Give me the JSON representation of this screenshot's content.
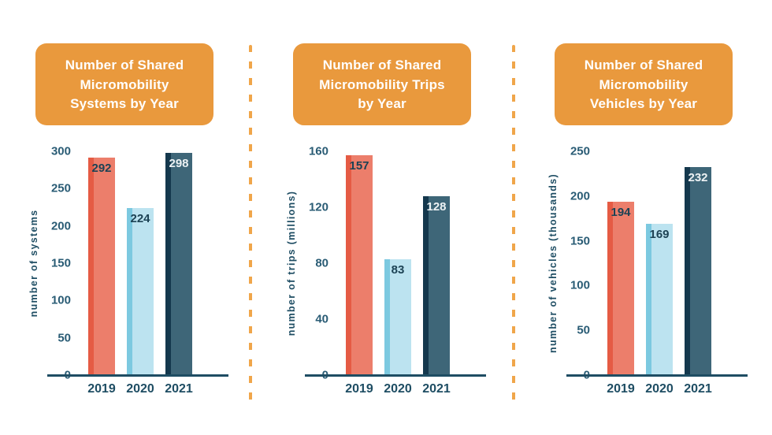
{
  "page": {
    "background": "#ffffff",
    "description_note": "Infographic with three bar charts separated by orange dashed dividers"
  },
  "colors": {
    "banner": "#E9993D",
    "banner_text": "#FFFFFF",
    "divider": "#F0A64A",
    "axis_line": "#1E4D63",
    "tick_text": "#2A5C75",
    "year_text": "#1E4D63",
    "bars": [
      {
        "name": "2019",
        "fill": "#EC7E6B",
        "edge": "#E55B44",
        "label": "#1C4254"
      },
      {
        "name": "2020",
        "fill": "#BCE3F0",
        "edge": "#7CC9E0",
        "label": "#1C4254"
      },
      {
        "name": "2021",
        "fill": "#3E6678",
        "edge": "#14384D",
        "label": "#EDF2F4"
      }
    ]
  },
  "chart_data": [
    {
      "type": "bar",
      "title": "Number of Shared Micromobility Systems by Year",
      "title_lines": [
        "Number of Shared",
        "Micromobility",
        "Systems by Year"
      ],
      "ylabel": "number of systems",
      "xlabel": "",
      "categories": [
        "2019",
        "2020",
        "2021"
      ],
      "values": [
        292,
        224,
        298
      ],
      "yticks": [
        0,
        50,
        100,
        150,
        200,
        250,
        300
      ],
      "ylim": [
        0,
        300
      ],
      "grid": false,
      "legend": "none"
    },
    {
      "type": "bar",
      "title": "Number of Shared Micromobility Trips by Year",
      "title_lines": [
        "Number of Shared",
        "Micromobility Trips",
        "by Year"
      ],
      "ylabel": "number of trips (millions)",
      "xlabel": "",
      "categories": [
        "2019",
        "2020",
        "2021"
      ],
      "values": [
        157,
        83,
        128
      ],
      "yticks": [
        0,
        40,
        80,
        120,
        160
      ],
      "ylim": [
        0,
        160
      ],
      "grid": false,
      "legend": "none"
    },
    {
      "type": "bar",
      "title": "Number of Shared Micromobility Vehicles by Year",
      "title_lines": [
        "Number of Shared",
        "Micromobility",
        "Vehicles by Year"
      ],
      "ylabel": "number of vehicles (thousands)",
      "xlabel": "",
      "categories": [
        "2019",
        "2020",
        "2021"
      ],
      "values": [
        194,
        169,
        232
      ],
      "yticks": [
        0,
        50,
        100,
        150,
        200,
        250
      ],
      "ylim": [
        0,
        250
      ],
      "grid": false,
      "legend": "none"
    }
  ]
}
